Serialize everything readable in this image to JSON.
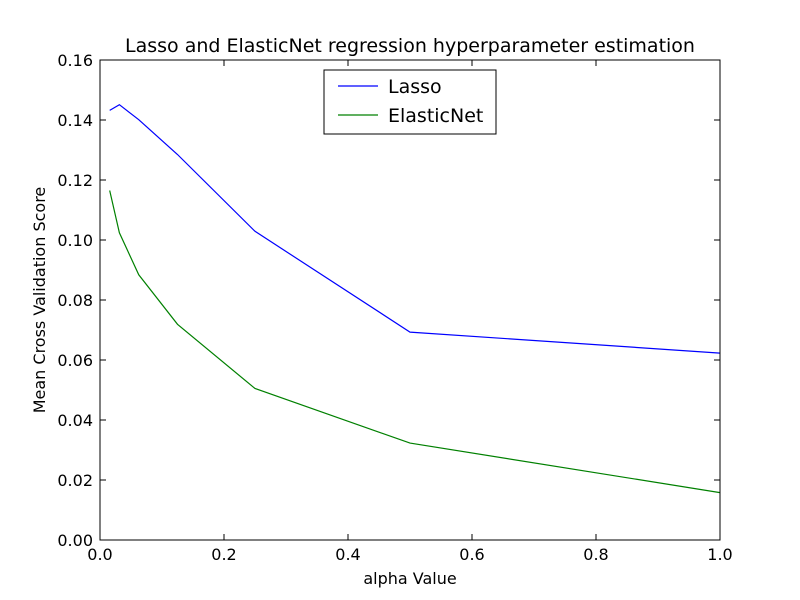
{
  "chart_data": {
    "type": "line",
    "title": "Lasso and ElasticNet regression hyperparameter estimation",
    "xlabel": "alpha Value",
    "ylabel": "Mean Cross Validation Score",
    "xlim": [
      0.0,
      1.0
    ],
    "ylim": [
      0.0,
      0.16
    ],
    "x_ticks": [
      "0.0",
      "0.2",
      "0.4",
      "0.6",
      "0.8",
      "1.0"
    ],
    "y_ticks": [
      "0.00",
      "0.02",
      "0.04",
      "0.06",
      "0.08",
      "0.10",
      "0.12",
      "0.14",
      "0.16"
    ],
    "grid": false,
    "legend_position": "top-center",
    "series": [
      {
        "name": "Lasso",
        "color": "#0000ff",
        "x": [
          0.015625,
          0.03125,
          0.0625,
          0.125,
          0.25,
          0.5,
          1.0
        ],
        "y": [
          0.1432,
          0.1451,
          0.1401,
          0.1285,
          0.1029,
          0.0693,
          0.0623
        ]
      },
      {
        "name": "ElasticNet",
        "color": "#008000",
        "x": [
          0.015625,
          0.03125,
          0.0625,
          0.125,
          0.25,
          0.5,
          1.0
        ],
        "y": [
          0.1165,
          0.1024,
          0.0884,
          0.0719,
          0.0505,
          0.0323,
          0.0158
        ]
      }
    ]
  }
}
